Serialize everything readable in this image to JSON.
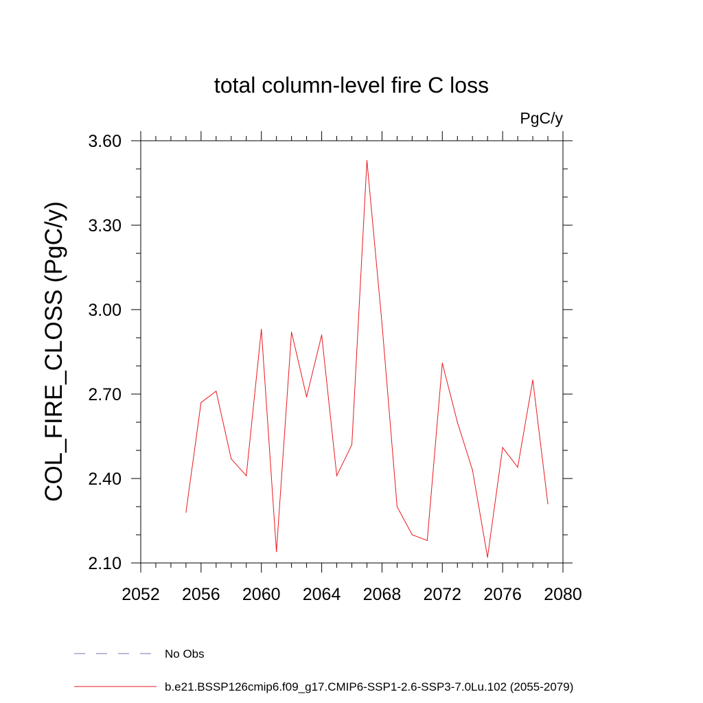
{
  "chart_data": {
    "type": "line",
    "title": "total column-level fire C loss",
    "units": "PgC/y",
    "ylabel": "COL_FIRE_CLOSS  (PgC/y)",
    "xlabel": "",
    "xlim": [
      2052,
      2080
    ],
    "ylim": [
      2.1,
      3.6
    ],
    "x_ticks": [
      2052,
      2056,
      2060,
      2064,
      2068,
      2072,
      2076,
      2080
    ],
    "x_tick_labels": [
      "2052",
      "2056",
      "2060",
      "2064",
      "2068",
      "2072",
      "2076",
      "2080"
    ],
    "y_ticks": [
      2.1,
      2.4,
      2.7,
      3.0,
      3.3,
      3.6
    ],
    "y_tick_labels": [
      "2.10",
      "2.40",
      "2.70",
      "3.00",
      "3.30",
      "3.60"
    ],
    "grid": false,
    "legend_position": "bottom",
    "series": [
      {
        "name": "No Obs",
        "color": "#7b6fb0",
        "dash": "dashed",
        "x": [],
        "values": []
      },
      {
        "name": "b.e21.BSSP126cmip6.f09_g17.CMIP6-SSP1-2.6-SSP3-7.0Lu.102 (2055-2079)",
        "color": "#e8161c",
        "dash": "solid",
        "x": [
          2055,
          2056,
          2057,
          2058,
          2059,
          2060,
          2061,
          2062,
          2063,
          2064,
          2065,
          2066,
          2067,
          2068,
          2069,
          2070,
          2071,
          2072,
          2073,
          2074,
          2075,
          2076,
          2077,
          2078,
          2079
        ],
        "values": [
          2.28,
          2.67,
          2.71,
          2.47,
          2.41,
          2.93,
          2.14,
          2.92,
          2.69,
          2.91,
          2.41,
          2.52,
          3.53,
          2.95,
          2.3,
          2.2,
          2.18,
          2.81,
          2.6,
          2.43,
          2.12,
          2.51,
          2.44,
          2.75,
          2.31
        ]
      }
    ]
  }
}
